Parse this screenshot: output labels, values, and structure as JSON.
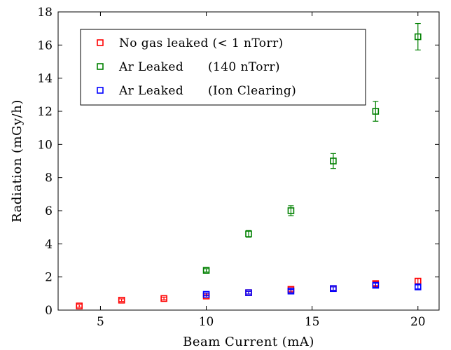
{
  "chart_data": {
    "type": "scatter",
    "xlabel": "Beam Current (mA)",
    "ylabel": "Radiation (mGy/h)",
    "xlim": [
      3,
      21
    ],
    "ylim": [
      0,
      18
    ],
    "xticks": [
      5,
      10,
      15,
      20
    ],
    "yticks": [
      0,
      2,
      4,
      6,
      8,
      10,
      12,
      14,
      16,
      18
    ],
    "grid": false,
    "legend_position": "top-left",
    "series": [
      {
        "name": "No gas leaked (< 1 nTorr)",
        "color": "#ff0000",
        "marker": "square-open",
        "points": [
          {
            "x": 4,
            "y": 0.25,
            "err": 0.08
          },
          {
            "x": 6,
            "y": 0.6,
            "err": 0.08
          },
          {
            "x": 8,
            "y": 0.7,
            "err": 0.08
          },
          {
            "x": 10,
            "y": 0.85,
            "err": 0.08
          },
          {
            "x": 12,
            "y": 1.05,
            "err": 0.08
          },
          {
            "x": 14,
            "y": 1.25,
            "err": 0.1
          },
          {
            "x": 16,
            "y": 1.3,
            "err": 0.1
          },
          {
            "x": 18,
            "y": 1.6,
            "err": 0.12
          },
          {
            "x": 20,
            "y": 1.75,
            "err": 0.15
          }
        ]
      },
      {
        "name": "Ar Leaked      (140 nTorr)",
        "color": "#008000",
        "marker": "square-open",
        "points": [
          {
            "x": 10,
            "y": 2.4,
            "err": 0.1
          },
          {
            "x": 12,
            "y": 4.6,
            "err": 0.2
          },
          {
            "x": 14,
            "y": 6.0,
            "err": 0.3
          },
          {
            "x": 16,
            "y": 9.0,
            "err": 0.45
          },
          {
            "x": 18,
            "y": 12.0,
            "err": 0.6
          },
          {
            "x": 20,
            "y": 16.5,
            "err": 0.8
          }
        ]
      },
      {
        "name": "Ar Leaked      (Ion Clearing)",
        "color": "#0000ff",
        "marker": "square-open",
        "points": [
          {
            "x": 10,
            "y": 0.95,
            "err": 0.08
          },
          {
            "x": 12,
            "y": 1.05,
            "err": 0.08
          },
          {
            "x": 14,
            "y": 1.15,
            "err": 0.1
          },
          {
            "x": 16,
            "y": 1.3,
            "err": 0.1
          },
          {
            "x": 18,
            "y": 1.5,
            "err": 0.12
          },
          {
            "x": 20,
            "y": 1.4,
            "err": 0.12
          }
        ]
      }
    ]
  }
}
